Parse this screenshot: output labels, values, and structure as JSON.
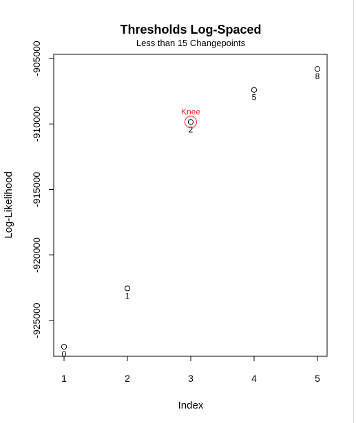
{
  "chart_data": {
    "type": "scatter",
    "title": "Thresholds Log-Spaced",
    "subtitle": "Less than 15 Changepoints",
    "xlabel": "Index",
    "ylabel": "Log-Likelihood",
    "xlim": [
      1,
      5
    ],
    "ylim": [
      -927500,
      -905000
    ],
    "xticks": [
      1,
      2,
      3,
      4,
      5
    ],
    "xtick_labels": [
      "1",
      "2",
      "3",
      "4",
      "5"
    ],
    "yticks": [
      -925000,
      -920000,
      -915000,
      -910000,
      -905000
    ],
    "ytick_labels": [
      "-925000",
      "-920000",
      "-915000",
      "-910000",
      "-905000"
    ],
    "grid": false,
    "points": [
      {
        "x": 1,
        "y": -927000,
        "label": "0"
      },
      {
        "x": 2,
        "y": -922550,
        "label": "1"
      },
      {
        "x": 3,
        "y": -909850,
        "label": "2"
      },
      {
        "x": 4,
        "y": -907400,
        "label": "5"
      },
      {
        "x": 5,
        "y": -905800,
        "label": "8"
      }
    ],
    "annotation": {
      "text": "Knee",
      "x": 3,
      "y": -909850,
      "color": "#ff2a2a"
    }
  }
}
